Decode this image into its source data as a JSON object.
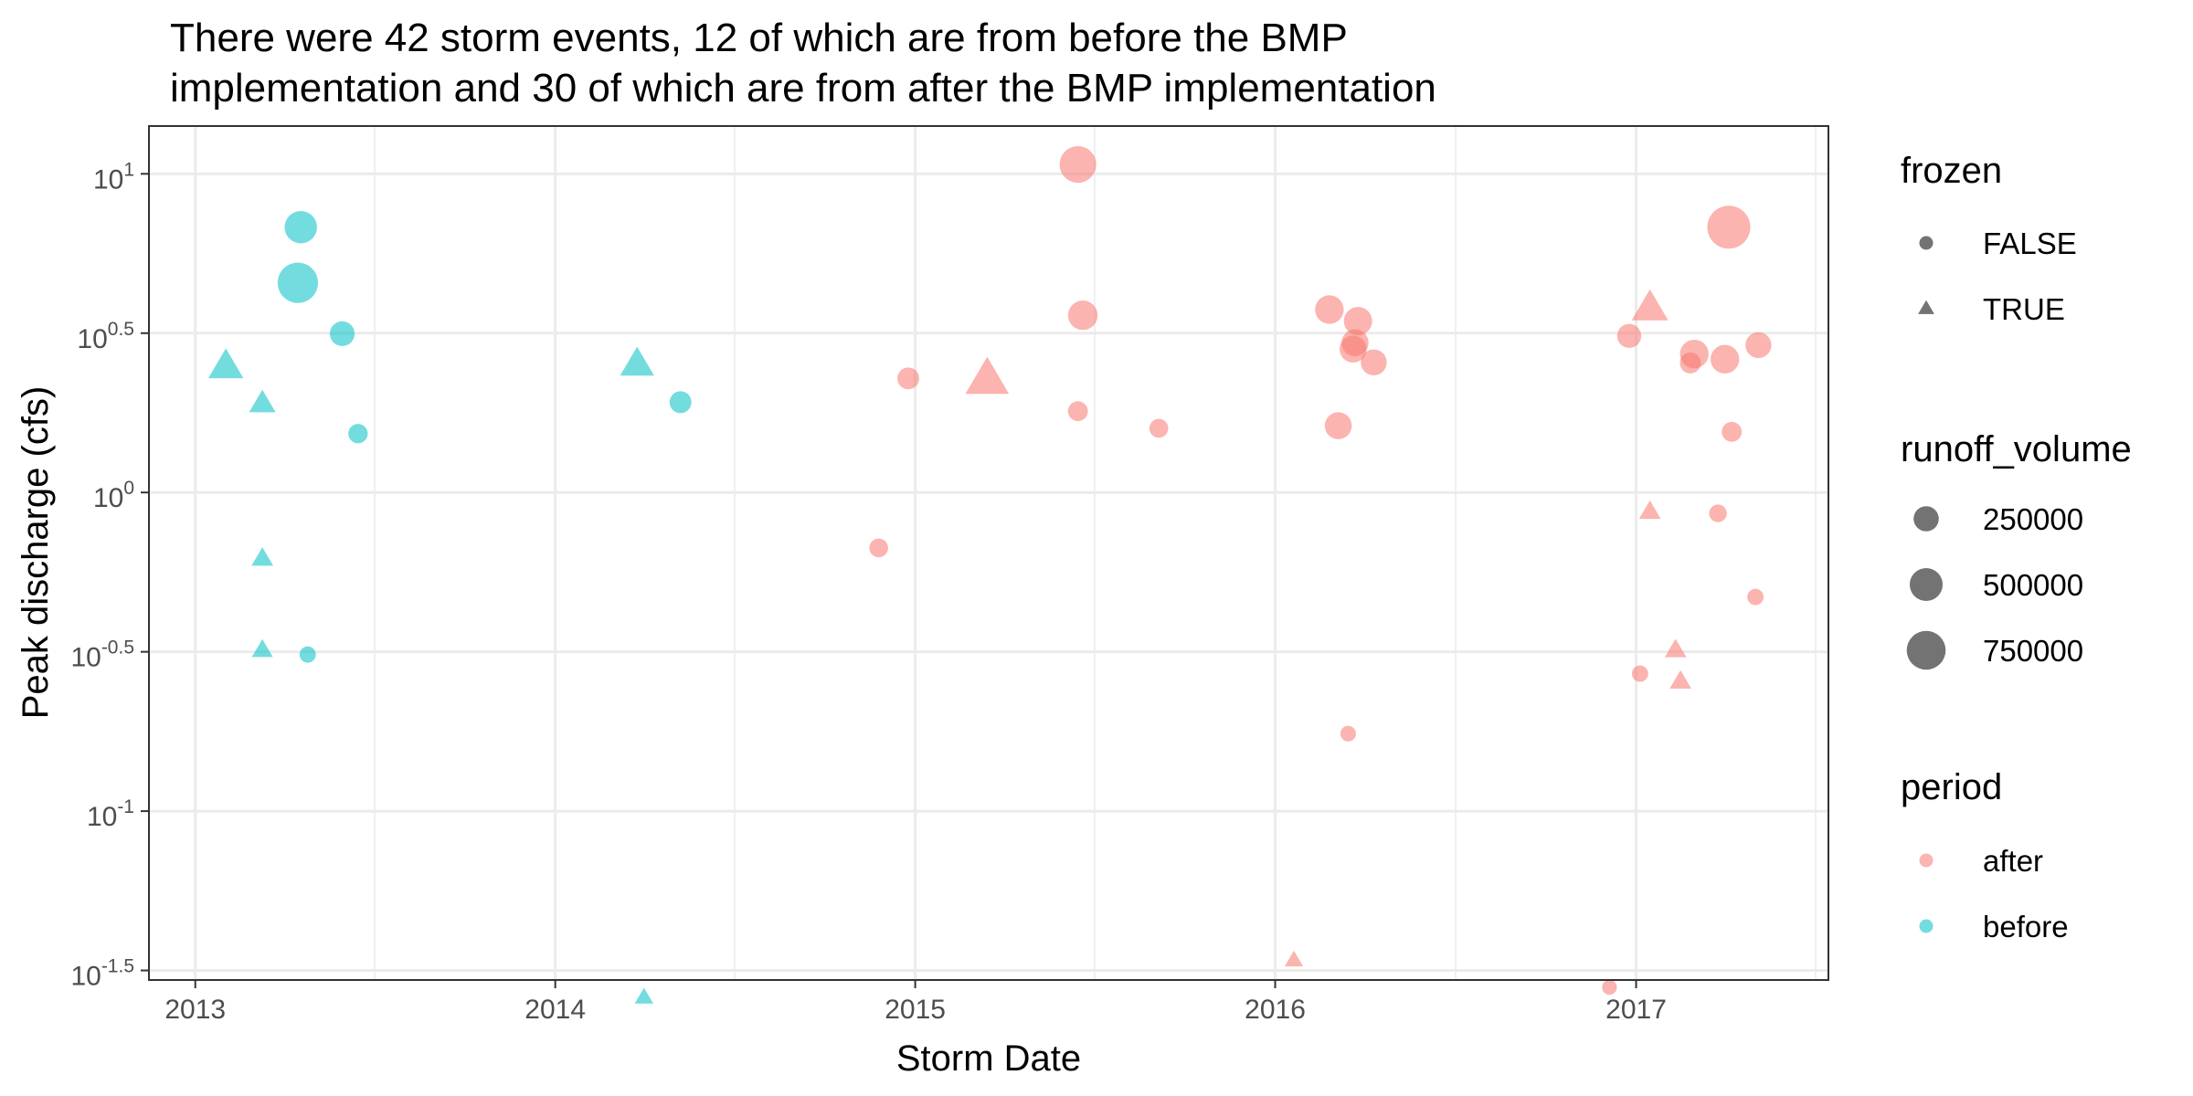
{
  "title_lines": [
    "There were 42 storm events, 12 of which are from before the BMP",
    "implementation and 30 of which are from after the BMP implementation"
  ],
  "chart_data": {
    "type": "scatter",
    "title": "There were 42 storm events, 12 of which are from before the BMP implementation and 30 of which are from after the BMP implementation",
    "xlabel": "Storm Date",
    "ylabel": "Peak discharge (cfs)",
    "y_scale": "log10",
    "xlim": [
      "2012-11-15",
      "2017-07-15"
    ],
    "ylim_log10": [
      -1.53,
      1.15
    ],
    "x_ticks": [
      {
        "date": "2013-01-01",
        "label": "2013"
      },
      {
        "date": "2014-01-01",
        "label": "2014"
      },
      {
        "date": "2015-01-01",
        "label": "2015"
      },
      {
        "date": "2016-01-01",
        "label": "2016"
      },
      {
        "date": "2017-01-01",
        "label": "2017"
      }
    ],
    "y_ticks": [
      {
        "log10": 1,
        "base": "10",
        "exp": "1"
      },
      {
        "log10": 0.5,
        "base": "10",
        "exp": "0.5"
      },
      {
        "log10": 0,
        "base": "10",
        "exp": "0"
      },
      {
        "log10": -0.5,
        "base": "10",
        "exp": "-0.5"
      },
      {
        "log10": -1,
        "base": "10",
        "exp": "-1"
      },
      {
        "log10": -1.5,
        "base": "10",
        "exp": "-1.5"
      }
    ],
    "grid": true,
    "legend_position": "right",
    "colors": {
      "after": "#F8766D",
      "before": "#00BFC4",
      "legend_gray": "#000000"
    },
    "series": [
      {
        "name": "before",
        "color": "#00BFC4",
        "points": [
          {
            "date": "2013-02-01",
            "y": 2.48,
            "frozen": true,
            "runoff_volume": 380000
          },
          {
            "date": "2013-03-10",
            "y": 1.9,
            "frozen": true,
            "runoff_volume": 180000
          },
          {
            "date": "2013-03-10",
            "y": 0.62,
            "frozen": true,
            "runoff_volume": 100000
          },
          {
            "date": "2013-03-10",
            "y": 0.32,
            "frozen": true,
            "runoff_volume": 90000
          },
          {
            "date": "2013-04-15",
            "y": 4.55,
            "frozen": false,
            "runoff_volume": 820000
          },
          {
            "date": "2013-04-18",
            "y": 6.8,
            "frozen": false,
            "runoff_volume": 480000
          },
          {
            "date": "2013-05-30",
            "y": 3.15,
            "frozen": false,
            "runoff_volume": 240000
          },
          {
            "date": "2013-04-25",
            "y": 0.31,
            "frozen": false,
            "runoff_volume": 70000
          },
          {
            "date": "2013-06-15",
            "y": 1.53,
            "frozen": false,
            "runoff_volume": 120000
          },
          {
            "date": "2014-03-25",
            "y": 2.52,
            "frozen": true,
            "runoff_volume": 350000
          },
          {
            "date": "2014-04-01",
            "y": 0.026,
            "frozen": true,
            "runoff_volume": 60000
          },
          {
            "date": "2014-05-08",
            "y": 1.92,
            "frozen": false,
            "runoff_volume": 170000
          }
        ]
      },
      {
        "name": "after",
        "color": "#F8766D",
        "points": [
          {
            "date": "2014-11-25",
            "y": 0.67,
            "frozen": false,
            "runoff_volume": 110000
          },
          {
            "date": "2014-12-25",
            "y": 2.28,
            "frozen": false,
            "runoff_volume": 170000
          },
          {
            "date": "2015-03-15",
            "y": 2.26,
            "frozen": true,
            "runoff_volume": 650000
          },
          {
            "date": "2015-06-15",
            "y": 1.8,
            "frozen": false,
            "runoff_volume": 130000
          },
          {
            "date": "2015-06-15",
            "y": 10.7,
            "frozen": false,
            "runoff_volume": 650000
          },
          {
            "date": "2015-06-20",
            "y": 3.6,
            "frozen": false,
            "runoff_volume": 380000
          },
          {
            "date": "2015-09-05",
            "y": 1.59,
            "frozen": false,
            "runoff_volume": 110000
          },
          {
            "date": "2016-01-20",
            "y": 0.034,
            "frozen": true,
            "runoff_volume": 60000
          },
          {
            "date": "2016-02-25",
            "y": 3.75,
            "frozen": false,
            "runoff_volume": 350000
          },
          {
            "date": "2016-03-05",
            "y": 1.62,
            "frozen": false,
            "runoff_volume": 300000
          },
          {
            "date": "2016-03-15",
            "y": 0.175,
            "frozen": false,
            "runoff_volume": 60000
          },
          {
            "date": "2016-03-20",
            "y": 2.82,
            "frozen": false,
            "runoff_volume": 300000
          },
          {
            "date": "2016-03-22",
            "y": 2.95,
            "frozen": false,
            "runoff_volume": 300000
          },
          {
            "date": "2016-03-25",
            "y": 3.45,
            "frozen": false,
            "runoff_volume": 340000
          },
          {
            "date": "2016-04-10",
            "y": 2.56,
            "frozen": false,
            "runoff_volume": 270000
          },
          {
            "date": "2016-12-05",
            "y": 0.028,
            "frozen": false,
            "runoff_volume": 50000
          },
          {
            "date": "2016-12-25",
            "y": 3.1,
            "frozen": false,
            "runoff_volume": 220000
          },
          {
            "date": "2017-01-05",
            "y": 0.27,
            "frozen": false,
            "runoff_volume": 70000
          },
          {
            "date": "2017-01-15",
            "y": 0.87,
            "frozen": true,
            "runoff_volume": 100000
          },
          {
            "date": "2017-01-15",
            "y": 3.78,
            "frozen": true,
            "runoff_volume": 420000
          },
          {
            "date": "2017-02-10",
            "y": 0.32,
            "frozen": true,
            "runoff_volume": 100000
          },
          {
            "date": "2017-02-15",
            "y": 0.255,
            "frozen": true,
            "runoff_volume": 100000
          },
          {
            "date": "2017-02-25",
            "y": 2.55,
            "frozen": false,
            "runoff_volume": 150000
          },
          {
            "date": "2017-03-01",
            "y": 2.72,
            "frozen": false,
            "runoff_volume": 350000
          },
          {
            "date": "2017-03-25",
            "y": 0.86,
            "frozen": false,
            "runoff_volume": 90000
          },
          {
            "date": "2017-04-01",
            "y": 2.62,
            "frozen": false,
            "runoff_volume": 350000
          },
          {
            "date": "2017-04-05",
            "y": 6.8,
            "frozen": false,
            "runoff_volume": 950000
          },
          {
            "date": "2017-04-08",
            "y": 1.55,
            "frozen": false,
            "runoff_volume": 130000
          },
          {
            "date": "2017-05-02",
            "y": 0.47,
            "frozen": false,
            "runoff_volume": 70000
          },
          {
            "date": "2017-05-05",
            "y": 2.9,
            "frozen": false,
            "runoff_volume": 270000
          }
        ]
      }
    ],
    "legends": {
      "frozen": {
        "title": "frozen",
        "items": [
          {
            "label": "FALSE",
            "shape": "circle"
          },
          {
            "label": "TRUE",
            "shape": "triangle"
          }
        ]
      },
      "runoff_volume": {
        "title": "runoff_volume",
        "items": [
          {
            "label": "250000",
            "value": 250000
          },
          {
            "label": "500000",
            "value": 500000
          },
          {
            "label": "750000",
            "value": 750000
          }
        ]
      },
      "period": {
        "title": "period",
        "items": [
          {
            "label": "after",
            "color": "#F8766D"
          },
          {
            "label": "before",
            "color": "#00BFC4"
          }
        ]
      }
    }
  }
}
